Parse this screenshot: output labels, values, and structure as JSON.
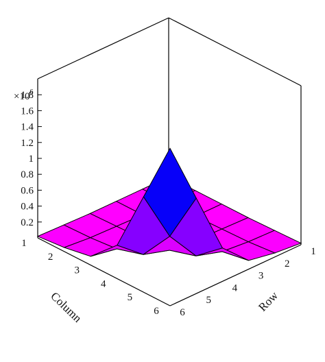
{
  "chart_data": {
    "type": "surface3d",
    "title": "",
    "multiplier_label": "×10",
    "multiplier_exponent": "6",
    "x": {
      "label": "Column",
      "ticks": [
        "1",
        "2",
        "3",
        "4",
        "5",
        "6"
      ]
    },
    "y": {
      "label": "Row",
      "ticks": [
        "1",
        "2",
        "3",
        "4",
        "5",
        "6"
      ]
    },
    "z": {
      "ticks": [
        "0.2",
        "0.4",
        "0.6",
        "0.8",
        "1",
        "1.2",
        "1.4",
        "1.6",
        "1.8"
      ],
      "tick_values": [
        0.2,
        0.4,
        0.6,
        0.8,
        1.0,
        1.2,
        1.4,
        1.6,
        1.8
      ],
      "range": [
        0,
        2.0
      ],
      "units_multiplier": 1000000
    },
    "z_values": [
      [
        0.0,
        0.0,
        0.0,
        0.0,
        0.01,
        0.02
      ],
      [
        0.0,
        0.0,
        0.0,
        0.01,
        0.02,
        0.05
      ],
      [
        0.0,
        0.0,
        0.01,
        0.02,
        0.05,
        0.11
      ],
      [
        0.0,
        0.01,
        0.02,
        0.05,
        0.15,
        0.42
      ],
      [
        0.01,
        0.02,
        0.05,
        0.15,
        0.55,
        1.2
      ],
      [
        0.02,
        0.05,
        0.11,
        0.42,
        1.2,
        1.98
      ]
    ],
    "colormap": [
      "#ff00ff",
      "#c000ff",
      "#4000ff",
      "#0000ff",
      "#5a00b0",
      "#b00020"
    ],
    "surface_edge_color": "#000000",
    "box_color": "#000000"
  }
}
